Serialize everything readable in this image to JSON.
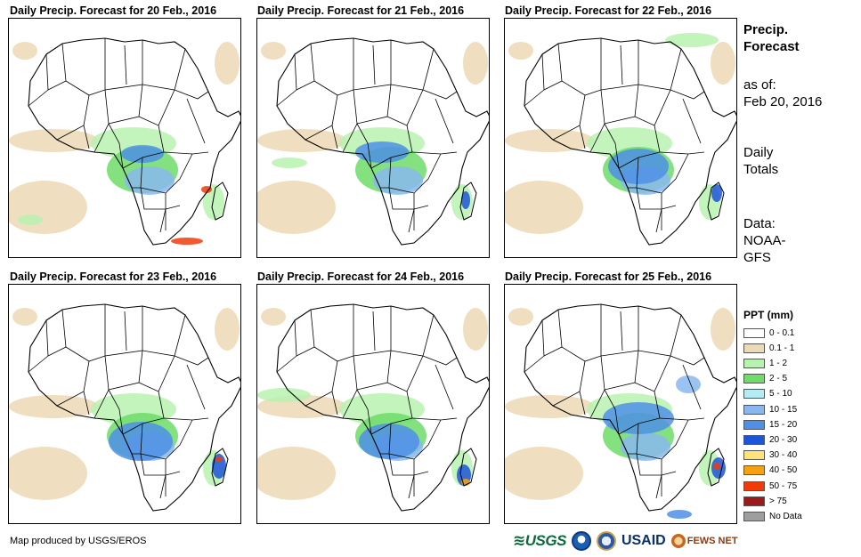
{
  "panels": [
    {
      "title": "Daily Precip. Forecast for 20 Feb., 2016"
    },
    {
      "title": "Daily Precip. Forecast for 21 Feb., 2016"
    },
    {
      "title": "Daily Precip. Forecast for 22 Feb., 2016"
    },
    {
      "title": "Daily Precip. Forecast for 23 Feb., 2016"
    },
    {
      "title": "Daily Precip. Forecast for 24 Feb., 2016"
    },
    {
      "title": "Daily Precip. Forecast for 25 Feb., 2016"
    }
  ],
  "sidebar": {
    "title_line1": "Precip.",
    "title_line2": "Forecast",
    "asof_label": "as of:",
    "asof_date": "Feb 20, 2016",
    "totals_line1": "Daily",
    "totals_line2": "Totals",
    "data_label": "Data:",
    "data_source_line1": "NOAA-",
    "data_source_line2": "GFS"
  },
  "legend": {
    "title": "PPT (mm)",
    "items": [
      {
        "label": "0 - 0.1",
        "color": "#ffffff"
      },
      {
        "label": "0.1 - 1",
        "color": "#ecd9b5"
      },
      {
        "label": "1 - 2",
        "color": "#b8f2b0"
      },
      {
        "label": "2 - 5",
        "color": "#6ddc6a"
      },
      {
        "label": "5 - 10",
        "color": "#b4ecf5"
      },
      {
        "label": "10 - 15",
        "color": "#8ab8ee"
      },
      {
        "label": "15 - 20",
        "color": "#4f8fe6"
      },
      {
        "label": "20 - 30",
        "color": "#1d55d9"
      },
      {
        "label": "30 - 40",
        "color": "#fbe27a"
      },
      {
        "label": "40 - 50",
        "color": "#f5a20e"
      },
      {
        "label": "50 - 75",
        "color": "#f03c0a"
      },
      {
        "label": "> 75",
        "color": "#9c1a1a"
      },
      {
        "label": "No Data",
        "color": "#9e9e9e"
      }
    ]
  },
  "footer": {
    "credit": "Map produced by USGS/EROS",
    "logo_usgs": "USGS",
    "logo_usaid": "USAID",
    "logo_fews": "FEWS NET"
  }
}
